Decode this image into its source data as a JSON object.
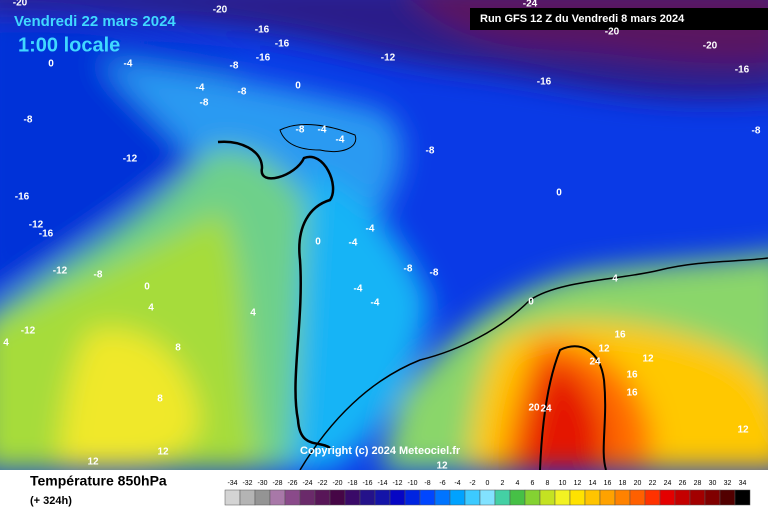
{
  "header": {
    "date": "Vendredi 22 mars 2024",
    "time": "1:00 locale",
    "run": "Run GFS 12 Z du Vendredi 8 mars 2024"
  },
  "copyright": "Copyright (c) 2024 Meteociel.fr",
  "footer": {
    "title": "Température 850hPa",
    "lead": "(+ 324h)"
  },
  "map": {
    "labels": [
      "-20",
      "-24",
      "-20",
      "-20",
      "-16",
      "-16",
      "-12",
      "-16",
      "-16",
      "-20",
      "-16",
      "-8",
      "-4",
      "-8",
      "-8",
      "-4",
      "-8",
      "0",
      "0",
      "-12",
      "-12",
      "-8",
      "-16",
      "-12",
      "-16",
      "-8",
      "-8",
      "-12",
      "0",
      "4",
      "4",
      "8",
      "8",
      "12",
      "12",
      "0",
      "-4",
      "-4",
      "-4",
      "-8",
      "-8",
      "-4",
      "0",
      "4",
      "16",
      "12",
      "12",
      "16",
      "24",
      "20",
      "24",
      "16",
      "12",
      "12",
      "4",
      "0",
      "-8",
      "-4",
      "-4"
    ]
  },
  "legend": {
    "ticks": [
      -34,
      -32,
      -30,
      -28,
      -26,
      -24,
      -22,
      -20,
      -18,
      -16,
      -14,
      -12,
      -10,
      -8,
      -6,
      -4,
      -2,
      0,
      2,
      4,
      6,
      8,
      10,
      12,
      14,
      16,
      18,
      20,
      22,
      24,
      26,
      28,
      30,
      32,
      34
    ],
    "colors": [
      "#d4d4d4",
      "#b4b4b4",
      "#949494",
      "#a878a8",
      "#8a4a8a",
      "#6a2a6a",
      "#581658",
      "#460646",
      "#3a0a68",
      "#24128a",
      "#1414a8",
      "#0606c4",
      "#0024e0",
      "#0046ff",
      "#0074ff",
      "#00a2ff",
      "#3ccaff",
      "#82e2ff",
      "#44d0a4",
      "#46c046",
      "#84d232",
      "#c4e222",
      "#f2f222",
      "#ffe200",
      "#ffc400",
      "#ffa200",
      "#ff8200",
      "#ff6000",
      "#ff3200",
      "#e40000",
      "#c40000",
      "#a20000",
      "#800000",
      "#520000",
      "#000000"
    ]
  }
}
